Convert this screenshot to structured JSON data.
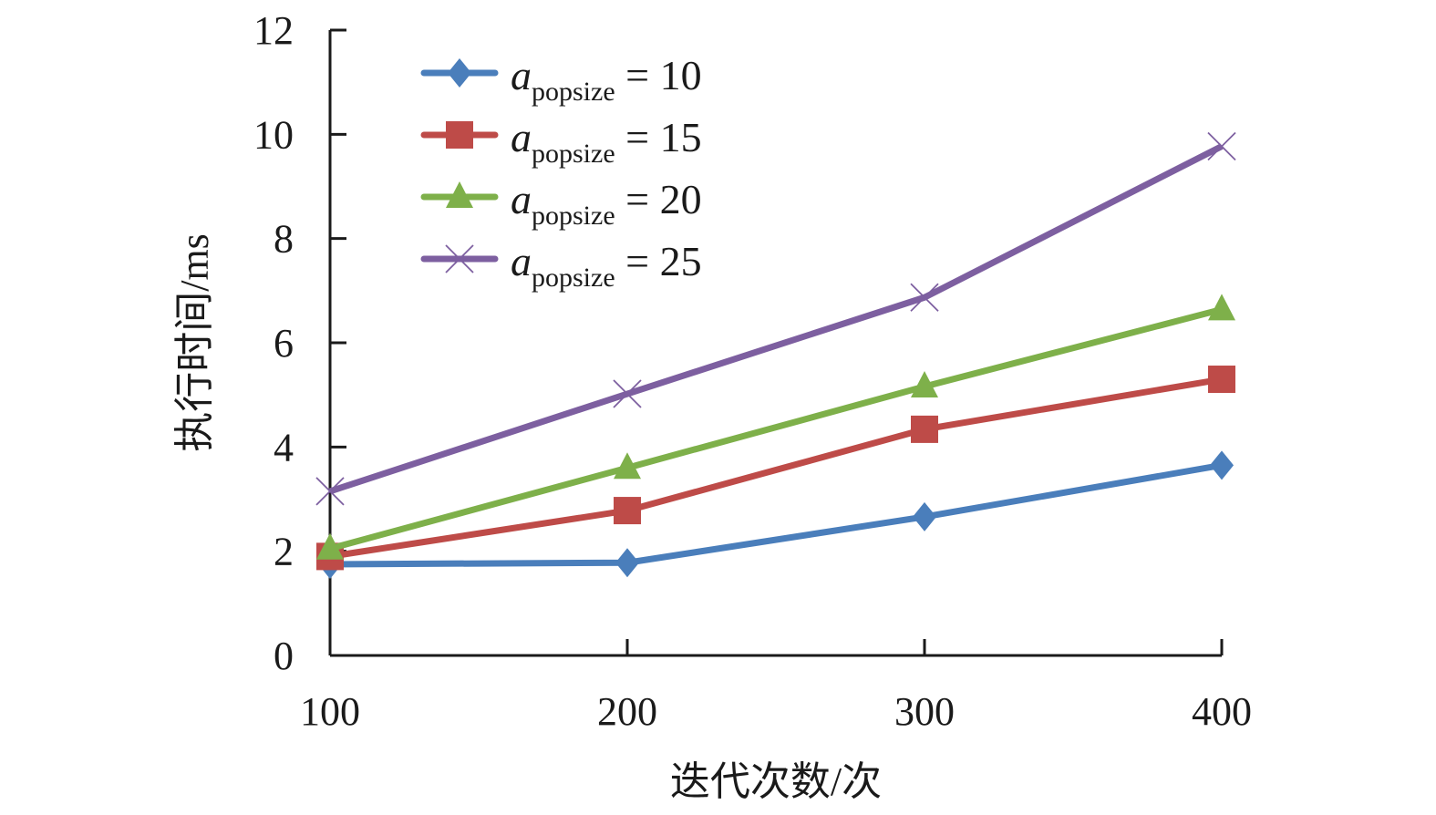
{
  "chart_data": {
    "type": "line",
    "title": "",
    "xlabel": "迭代次数/次",
    "ylabel": "执行时间/ms",
    "x": [
      100,
      200,
      300,
      400
    ],
    "xticks": [
      "100",
      "200",
      "300",
      "400"
    ],
    "yticks": [
      "0",
      "2",
      "4",
      "6",
      "8",
      "10",
      "12"
    ],
    "ylim": [
      0,
      12
    ],
    "xlim": [
      100,
      400
    ],
    "grid": false,
    "legend_position": "top-left",
    "series": [
      {
        "name_base": "a",
        "name_sub": "popsize",
        "name_rest": " = 10",
        "marker": "diamond",
        "color": "#4a7ebb",
        "values": [
          1.75,
          1.78,
          2.66,
          3.65
        ]
      },
      {
        "name_base": "a",
        "name_sub": "popsize",
        "name_rest": " = 15",
        "marker": "square",
        "color": "#be4b48",
        "values": [
          1.9,
          2.78,
          4.34,
          5.3
        ]
      },
      {
        "name_base": "a",
        "name_sub": "popsize",
        "name_rest": " = 20",
        "marker": "triangle",
        "color": "#7eb04a",
        "values": [
          2.05,
          3.6,
          5.16,
          6.64
        ]
      },
      {
        "name_base": "a",
        "name_sub": "popsize",
        "name_rest": " = 25",
        "marker": "x",
        "color": "#7d5fa0",
        "values": [
          3.15,
          5.02,
          6.87,
          9.77
        ]
      }
    ]
  }
}
